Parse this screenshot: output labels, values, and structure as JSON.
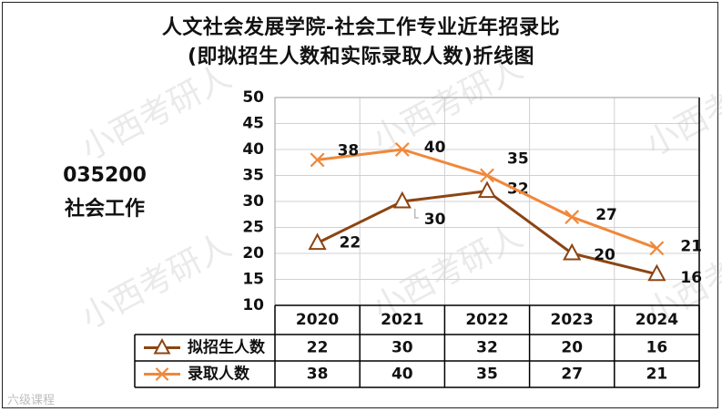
{
  "watermark_text": "小西考研人",
  "corner_logo": "六级课程",
  "chart_data": {
    "type": "line",
    "title": "人文社会发展学院-社会工作专业近年招录比",
    "subtitle": "(即拟招生人数和实际录取人数)折线图",
    "side_label": {
      "code": "035200",
      "name": "社会工作"
    },
    "categories": [
      "2020",
      "2021",
      "2022",
      "2023",
      "2024"
    ],
    "ylim": [
      10,
      50
    ],
    "yticks": [
      10,
      15,
      20,
      25,
      30,
      35,
      40,
      45,
      50
    ],
    "grid": true,
    "legend": "data-table",
    "series": [
      {
        "name": "拟招生人数",
        "values": [
          22,
          30,
          32,
          20,
          16
        ],
        "color": "#8B4513",
        "marker": "triangle"
      },
      {
        "name": "录取人数",
        "values": [
          38,
          40,
          35,
          27,
          21
        ],
        "color": "#F0883A",
        "marker": "x"
      }
    ]
  }
}
